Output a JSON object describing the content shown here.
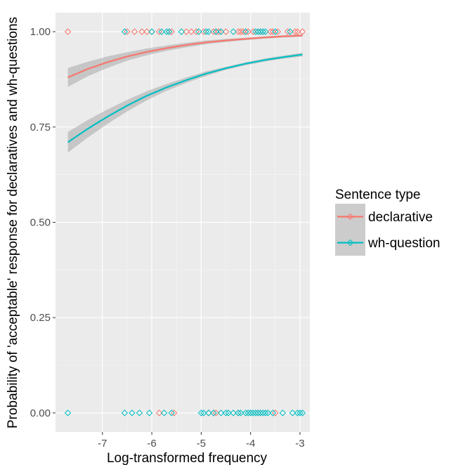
{
  "chart_data": {
    "type": "scatter",
    "title": "",
    "xlabel": "Log-transformed frequency",
    "ylabel": "Probability of 'acceptable' response for declaratives and wh-questions",
    "xlim": [
      -7.95,
      -2.8
    ],
    "ylim": [
      -0.05,
      1.05
    ],
    "x_ticks": [
      -7,
      -6,
      -5,
      -4,
      -3
    ],
    "x_tick_labels": [
      "-7",
      "-6",
      "-5",
      "-4",
      "-3"
    ],
    "y_ticks": [
      0,
      0.25,
      0.5,
      0.75,
      1
    ],
    "y_tick_labels": [
      "0.00",
      "0.25",
      "0.50",
      "0.75",
      "1.00"
    ],
    "grid": true,
    "legend": {
      "title": "Sentence type",
      "position": "right",
      "entries": [
        "declarative",
        "wh-question"
      ]
    },
    "series": [
      {
        "name": "declarative",
        "color": "#F8766D",
        "points_at_1": [
          -7.7,
          -6.5,
          -6.35,
          -6.2,
          -6.1,
          -6.0,
          -5.85,
          -5.65,
          -5.6,
          -5.3,
          -5.2,
          -5.1,
          -4.95,
          -4.75,
          -4.7,
          -4.65,
          -4.6,
          -4.5,
          -4.25,
          -4.2,
          -4.15,
          -4.1,
          -4.05,
          -3.95,
          -3.85,
          -3.8,
          -3.75,
          -3.6,
          -3.55,
          -3.45,
          -3.25,
          -3.1,
          -3.05,
          -2.95
        ],
        "points_at_0": [
          -5.85,
          -5.55,
          -4.85,
          -4.75,
          -4.7,
          -4.25,
          -4.0,
          -3.85,
          -3.5
        ],
        "fit": {
          "x": [
            -7.7,
            -7.3,
            -6.9,
            -6.5,
            -6.1,
            -5.7,
            -5.3,
            -4.9,
            -4.5,
            -4.1,
            -3.7,
            -3.3,
            -2.95
          ],
          "y": [
            0.88,
            0.902,
            0.92,
            0.935,
            0.947,
            0.957,
            0.965,
            0.972,
            0.977,
            0.981,
            0.985,
            0.988,
            0.99
          ],
          "ci_low": [
            0.855,
            0.883,
            0.905,
            0.924,
            0.938,
            0.95,
            0.959,
            0.967,
            0.973,
            0.978,
            0.982,
            0.985,
            0.987
          ],
          "ci_high": [
            0.905,
            0.921,
            0.935,
            0.946,
            0.956,
            0.964,
            0.971,
            0.977,
            0.981,
            0.984,
            0.988,
            0.991,
            0.993
          ]
        }
      },
      {
        "name": "wh-question",
        "color": "#00BFC4",
        "points_at_1": [
          -6.55,
          -6.0,
          -5.8,
          -5.7,
          -5.65,
          -5.4,
          -5.05,
          -4.9,
          -4.85,
          -4.7,
          -4.6,
          -4.35,
          -4.1,
          -3.9,
          -3.85,
          -3.8,
          -3.75,
          -3.7,
          -3.5,
          -3.2
        ],
        "points_at_0": [
          -7.7,
          -6.55,
          -6.4,
          -6.25,
          -6.05,
          -5.75,
          -5.6,
          -5.0,
          -4.95,
          -4.85,
          -4.75,
          -4.6,
          -4.5,
          -4.45,
          -4.35,
          -4.25,
          -4.2,
          -4.1,
          -4.05,
          -4.0,
          -3.95,
          -3.9,
          -3.85,
          -3.8,
          -3.75,
          -3.7,
          -3.65,
          -3.55,
          -3.35,
          -3.15,
          -3.05,
          -3.0,
          -2.95
        ],
        "fit": {
          "x": [
            -7.7,
            -7.3,
            -6.9,
            -6.5,
            -6.1,
            -5.7,
            -5.3,
            -4.9,
            -4.5,
            -4.1,
            -3.7,
            -3.3,
            -2.95
          ],
          "y": [
            0.71,
            0.745,
            0.777,
            0.806,
            0.832,
            0.854,
            0.873,
            0.89,
            0.904,
            0.916,
            0.926,
            0.934,
            0.94
          ],
          "ci_low": [
            0.683,
            0.722,
            0.758,
            0.791,
            0.82,
            0.845,
            0.866,
            0.884,
            0.9,
            0.912,
            0.922,
            0.93,
            0.935
          ],
          "ci_high": [
            0.737,
            0.768,
            0.796,
            0.821,
            0.844,
            0.863,
            0.88,
            0.896,
            0.908,
            0.92,
            0.93,
            0.938,
            0.945
          ]
        }
      }
    ]
  }
}
